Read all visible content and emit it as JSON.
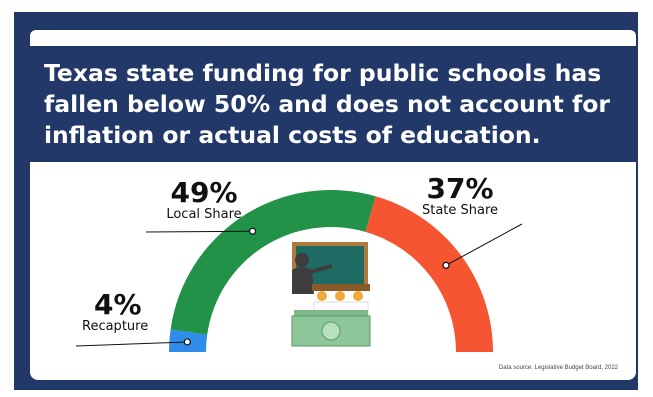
{
  "headline": "Texas state funding for public schools has fallen below 50% and does not account for inflation or actual costs of education.",
  "source_note": "Data source: Legislative Budget Board, 2022",
  "chart_data": {
    "type": "pie",
    "variant": "semicircle-gauge",
    "categories": [
      "Recapture",
      "Local Share",
      "State Share"
    ],
    "values": [
      4,
      49,
      37
    ],
    "value_labels": [
      "4%",
      "49%",
      "37%"
    ],
    "colors": [
      "#2f8ce8",
      "#219248",
      "#f55530"
    ],
    "illustration": "teacher-at-chalkboard-with-money-icon"
  }
}
